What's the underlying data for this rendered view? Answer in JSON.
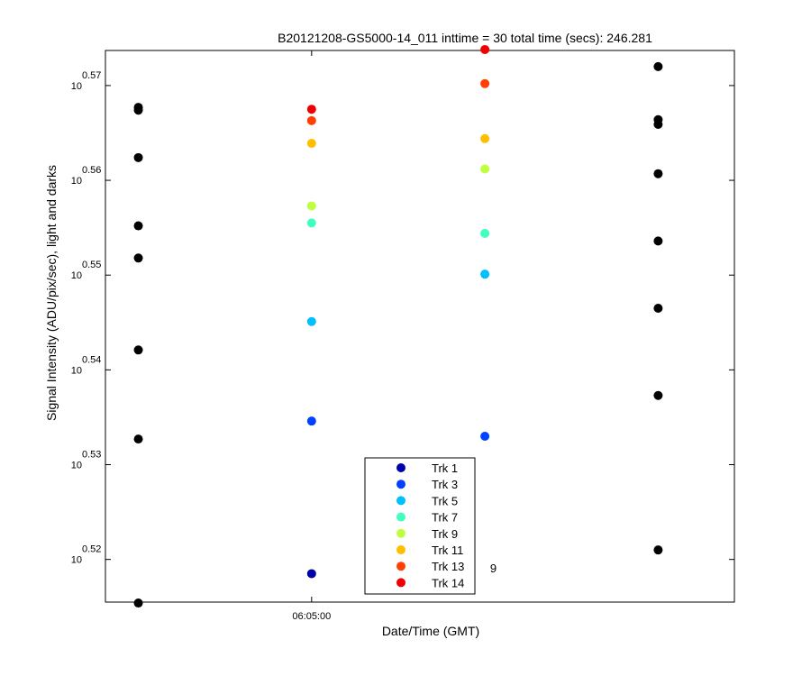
{
  "chart_data": {
    "type": "scatter",
    "title": "B20121208-GS5000-14_011 inttime = 30 total time (secs): 246.281",
    "xlabel": "Date/Time (GMT)",
    "ylabel": "Signal Intensity (ADU/pix/sec), light and darks",
    "yscale": "log",
    "ylim_exponent": [
      0.5155,
      0.5737
    ],
    "y_ticks": [
      {
        "base": "10",
        "exp": "0.52",
        "value": 0.52
      },
      {
        "base": "10",
        "exp": "0.53",
        "value": 0.53
      },
      {
        "base": "10",
        "exp": "0.54",
        "value": 0.54
      },
      {
        "base": "10",
        "exp": "0.55",
        "value": 0.55
      },
      {
        "base": "10",
        "exp": "0.56",
        "value": 0.56
      },
      {
        "base": "10",
        "exp": "0.57",
        "value": 0.57
      }
    ],
    "x_ticks": [
      {
        "label": "06:05:00",
        "position": 1
      }
    ],
    "x_positions": [
      0,
      1,
      2,
      3
    ],
    "x_index_range": [
      -0.19,
      3.44
    ],
    "series": [
      {
        "name": "Trk 1",
        "color": "#0000aa",
        "points": [
          [
            1,
            0.5185
          ]
        ]
      },
      {
        "name": "Trk 3",
        "color": "#0040ff",
        "points": [
          [
            1,
            0.5346
          ],
          [
            2,
            0.533
          ]
        ]
      },
      {
        "name": "Trk 5",
        "color": "#00bfff",
        "points": [
          [
            1,
            0.5451
          ],
          [
            2,
            0.5501
          ]
        ]
      },
      {
        "name": "Trk 7",
        "color": "#40ffbf",
        "points": [
          [
            1,
            0.5555
          ],
          [
            2,
            0.5544
          ]
        ]
      },
      {
        "name": "Trk 9",
        "color": "#bfff40",
        "points": [
          [
            1,
            0.5573
          ],
          [
            2,
            0.5612
          ]
        ]
      },
      {
        "name": "Trk 11",
        "color": "#ffbf00",
        "points": [
          [
            1,
            0.5639
          ],
          [
            2,
            0.5644
          ]
        ]
      },
      {
        "name": "Trk 13",
        "color": "#ff4000",
        "points": [
          [
            1,
            0.5663
          ],
          [
            2,
            0.5702
          ]
        ]
      },
      {
        "name": "Trk 14",
        "color": "#ee0000",
        "points": [
          [
            1,
            0.5675
          ],
          [
            2,
            0.5738
          ]
        ]
      },
      {
        "name": "",
        "color": "#000000",
        "points": [
          [
            0,
            0.5154
          ],
          [
            0,
            0.5327
          ],
          [
            0,
            0.5421
          ],
          [
            0,
            0.5518
          ],
          [
            0,
            0.5552
          ],
          [
            0,
            0.5624
          ],
          [
            0,
            0.5674
          ],
          [
            0,
            0.5677
          ],
          [
            3,
            0.521
          ],
          [
            3,
            0.5373
          ],
          [
            3,
            0.5465
          ],
          [
            3,
            0.5536
          ],
          [
            3,
            0.5607
          ],
          [
            3,
            0.5659
          ],
          [
            3,
            0.5664
          ],
          [
            3,
            0.572
          ]
        ]
      }
    ],
    "extra_labels": [
      {
        "text": "9",
        "x": 2.03,
        "y": 0.519
      }
    ],
    "legend": {
      "placement": "bottom-center",
      "entries": [
        "Trk 1",
        "Trk 3",
        "Trk 5",
        "Trk 7",
        "Trk 9",
        "Trk 11",
        "Trk 13",
        "Trk 14"
      ]
    },
    "grid": false
  }
}
